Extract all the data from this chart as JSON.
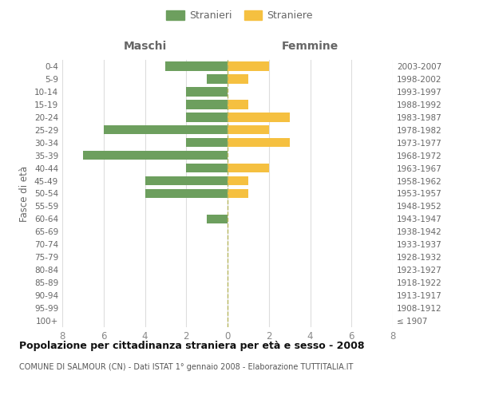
{
  "age_groups": [
    "100+",
    "95-99",
    "90-94",
    "85-89",
    "80-84",
    "75-79",
    "70-74",
    "65-69",
    "60-64",
    "55-59",
    "50-54",
    "45-49",
    "40-44",
    "35-39",
    "30-34",
    "25-29",
    "20-24",
    "15-19",
    "10-14",
    "5-9",
    "0-4"
  ],
  "birth_years": [
    "≤ 1907",
    "1908-1912",
    "1913-1917",
    "1918-1922",
    "1923-1927",
    "1928-1932",
    "1933-1937",
    "1938-1942",
    "1943-1947",
    "1948-1952",
    "1953-1957",
    "1958-1962",
    "1963-1967",
    "1968-1972",
    "1973-1977",
    "1978-1982",
    "1983-1987",
    "1988-1992",
    "1993-1997",
    "1998-2002",
    "2003-2007"
  ],
  "males": [
    0,
    0,
    0,
    0,
    0,
    0,
    0,
    0,
    1,
    0,
    4,
    4,
    2,
    7,
    2,
    6,
    2,
    2,
    2,
    1,
    3
  ],
  "females": [
    0,
    0,
    0,
    0,
    0,
    0,
    0,
    0,
    0,
    0,
    1,
    1,
    2,
    0,
    3,
    2,
    3,
    1,
    0,
    1,
    2
  ],
  "male_color": "#6d9f5e",
  "female_color": "#f5c040",
  "center_line_color": "#b8b860",
  "grid_color": "#dddddd",
  "title": "Popolazione per cittadinanza straniera per età e sesso - 2008",
  "subtitle": "COMUNE DI SALMOUR (CN) - Dati ISTAT 1° gennaio 2008 - Elaborazione TUTTITALIA.IT",
  "ylabel_left": "Fasce di età",
  "xlabel_left": "Maschi",
  "xlabel_right": "Femmine",
  "legend_stranieri": "Stranieri",
  "legend_straniere": "Straniere",
  "xlim": 8,
  "background_color": "#ffffff",
  "title_color": "#111111",
  "subtitle_color": "#555555",
  "label_color": "#666666",
  "tick_color": "#888888"
}
